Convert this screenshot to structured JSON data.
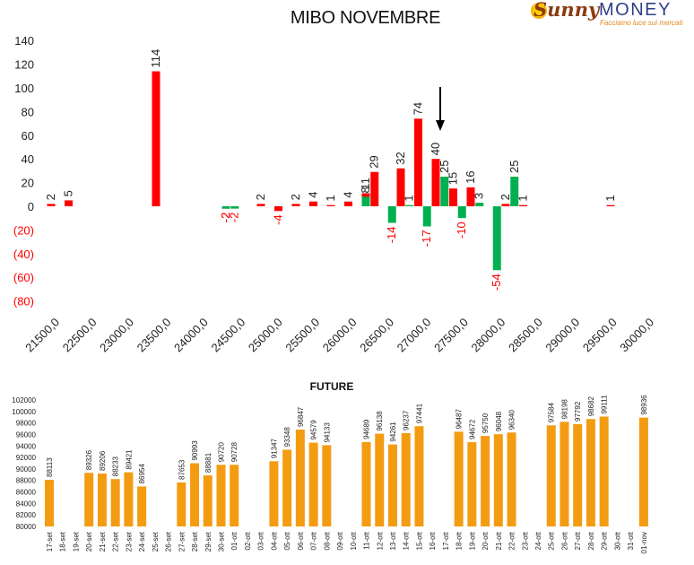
{
  "logo": {
    "brand_a": "Sunny",
    "brand_b": "MONEY",
    "tagline": "Facciamo luce sui mercati"
  },
  "colors": {
    "positive": "#ff0000",
    "negative": "#00b050",
    "future": "#f39c12",
    "negative_label": "#ff0000"
  },
  "chart_data": [
    {
      "type": "bar",
      "title": "MIBO NOVEMBRE",
      "ylim": [
        -80,
        140
      ],
      "yticks": [
        140,
        120,
        100,
        80,
        60,
        40,
        20,
        0,
        -20,
        -40,
        -60,
        -80
      ],
      "ytick_labels": [
        "140",
        "120",
        "100",
        "80",
        "60",
        "40",
        "20",
        "0",
        "(20)",
        "(40)",
        "(60)",
        "(80)"
      ],
      "x_tick_labels": [
        "21500,0",
        "22500,0",
        "23000,0",
        "23500,0",
        "24000,0",
        "24500,0",
        "25000,0",
        "25500,0",
        "26000,0",
        "26500,0",
        "27000,0",
        "27500,0",
        "28000,0",
        "28500,0",
        "29000,0",
        "29500,0",
        "30000,0"
      ],
      "grid": false,
      "marker": {
        "shape": "down-arrow",
        "strike": 27000
      },
      "series": [
        {
          "values": [
            {
              "strike": 21500,
              "value": 2
            },
            {
              "strike": 21750,
              "value": 5
            },
            {
              "strike": 23000,
              "value": 114
            },
            {
              "strike": 24000,
              "value": -2
            },
            {
              "strike": 24500,
              "value": 2
            },
            {
              "strike": 24750,
              "value": -4
            },
            {
              "strike": 25000,
              "value": 2
            },
            {
              "strike": 25250,
              "value": 4
            },
            {
              "strike": 25500,
              "value": 1
            },
            {
              "strike": 25750,
              "value": 4
            },
            {
              "strike": 26000,
              "value": 11
            },
            {
              "strike": 26125,
              "value": 29
            },
            {
              "strike": 26500,
              "value": 32
            },
            {
              "strike": 26750,
              "value": 74
            },
            {
              "strike": 27000,
              "value": 40
            },
            {
              "strike": 27250,
              "value": 15
            },
            {
              "strike": 27500,
              "value": 16
            },
            {
              "strike": 28000,
              "value": 2
            },
            {
              "strike": 28250,
              "value": 1
            },
            {
              "strike": 29500,
              "value": 1
            }
          ]
        },
        {
          "values": [
            {
              "strike": 24000,
              "value": -2
            },
            {
              "strike": 24125,
              "value": -2
            },
            {
              "strike": 26000,
              "value": 8
            },
            {
              "strike": 26375,
              "value": -14
            },
            {
              "strike": 26625,
              "value": 1
            },
            {
              "strike": 26875,
              "value": -17
            },
            {
              "strike": 27125,
              "value": 25
            },
            {
              "strike": 27375,
              "value": -10
            },
            {
              "strike": 27625,
              "value": 3
            },
            {
              "strike": 27875,
              "value": -54
            },
            {
              "strike": 28125,
              "value": 25
            }
          ]
        }
      ]
    },
    {
      "type": "bar",
      "title": "FUTURE",
      "ylim": [
        80000,
        102000
      ],
      "yticks": [
        80000,
        82000,
        84000,
        86000,
        88000,
        90000,
        92000,
        94000,
        96000,
        98000,
        100000,
        102000
      ],
      "categories": [
        "17-set",
        "18-set",
        "19-set",
        "20-set",
        "21-set",
        "22-set",
        "23-set",
        "24-set",
        "25-set",
        "26-set",
        "27-set",
        "28-set",
        "29-set",
        "30-set",
        "01-ott",
        "02-ott",
        "03-ott",
        "04-ott",
        "05-ott",
        "06-ott",
        "07-ott",
        "08-ott",
        "09-ott",
        "10-ott",
        "11-ott",
        "12-ott",
        "13-ott",
        "14-ott",
        "15-ott",
        "16-ott",
        "17-ott",
        "18-ott",
        "19-ott",
        "20-ott",
        "21-ott",
        "22-ott",
        "23-ott",
        "24-ott",
        "25-ott",
        "26-ott",
        "27-ott",
        "28-ott",
        "29-ott",
        "30-ott",
        "31-ott",
        "01-nov"
      ],
      "values": [
        88113,
        null,
        null,
        89326,
        89206,
        88233,
        89421,
        86954,
        null,
        null,
        87653,
        90993,
        88881,
        90720,
        90728,
        null,
        null,
        91347,
        93348,
        96847,
        94579,
        94133,
        null,
        null,
        94689,
        96138,
        94261,
        96237,
        97441,
        null,
        null,
        96487,
        94672,
        95750,
        96048,
        96340,
        null,
        null,
        97584,
        98198,
        97792,
        98682,
        99111,
        null,
        null,
        98936
      ],
      "grid": false
    }
  ]
}
